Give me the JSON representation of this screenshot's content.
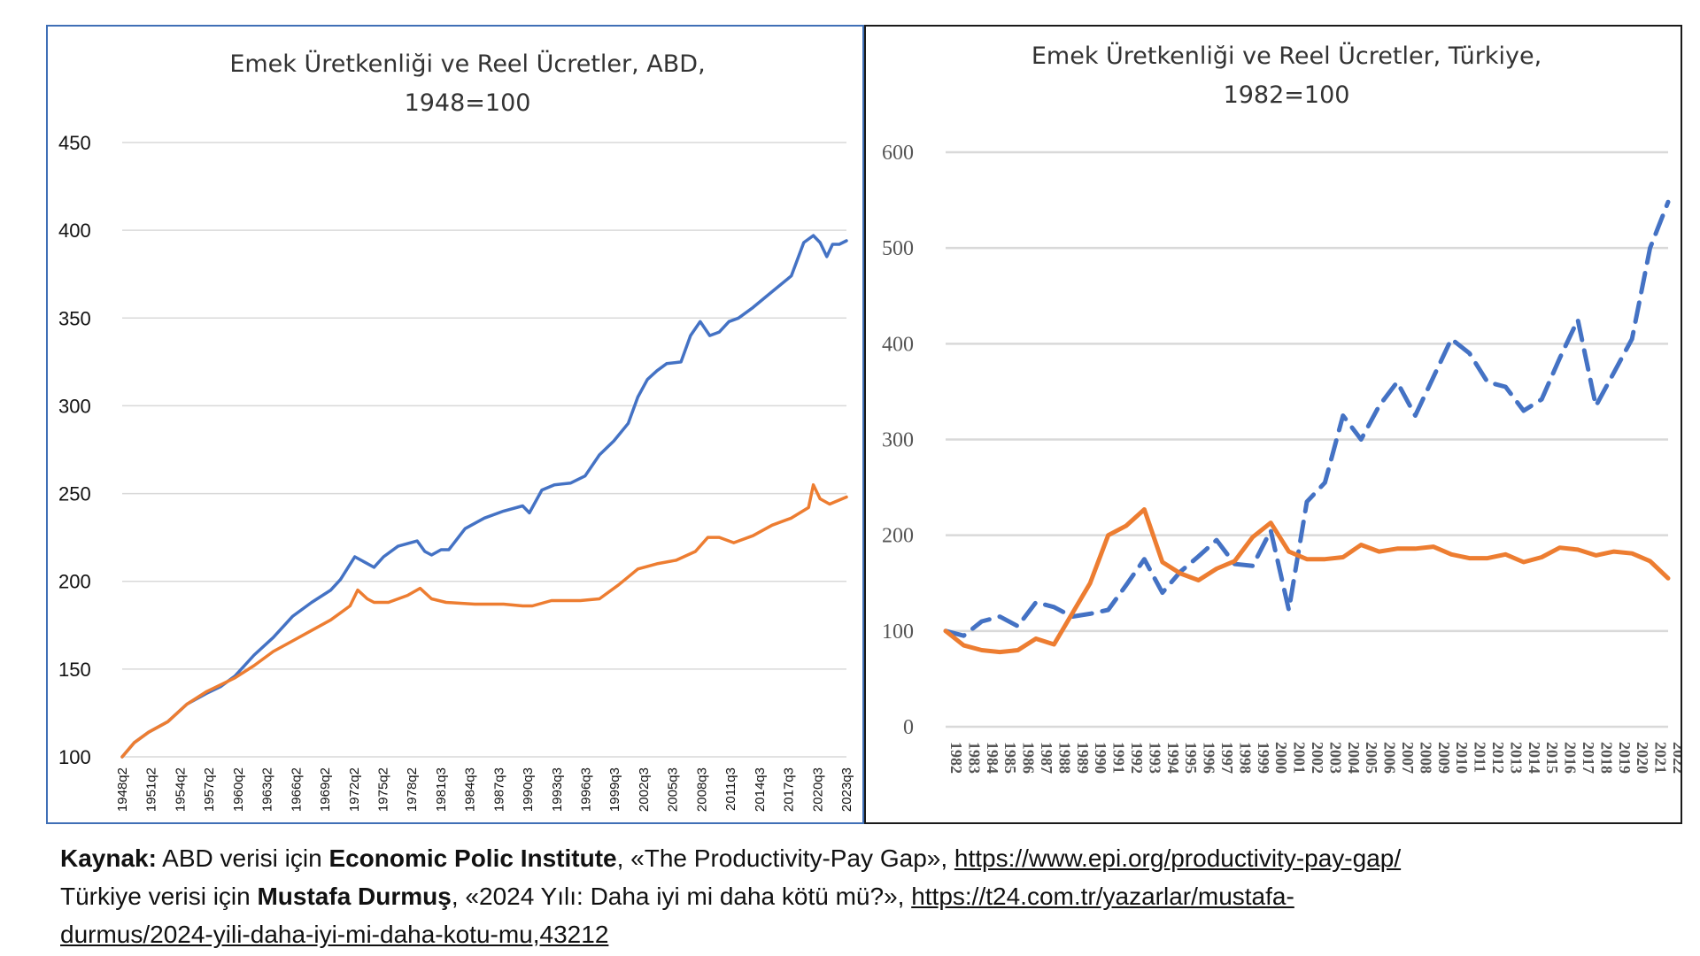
{
  "chart_data": [
    {
      "type": "line",
      "title_line1": "Emek Üretkenliği ve Reel Ücretler, ABD,",
      "title_line2": "1948=100",
      "ylim": [
        100,
        450
      ],
      "yticks": [
        100,
        150,
        200,
        250,
        300,
        350,
        400,
        450
      ],
      "x_tick_labels": [
        "1948q2",
        "1951q2",
        "1954q2",
        "1957q2",
        "1960q2",
        "1963q2",
        "1966q2",
        "1969q2",
        "1972q2",
        "1975q2",
        "1978q2",
        "1981q3",
        "1984q3",
        "1987q3",
        "1990q3",
        "1993q3",
        "1996q3",
        "1999q3",
        "2002q3",
        "2005q3",
        "2008q3",
        "2011q3",
        "2014q3",
        "2017q3",
        "2020q3",
        "2023q3"
      ],
      "x_range": [
        1948.25,
        2023.75
      ],
      "grid": true,
      "series": [
        {
          "color": "#4472c4",
          "style": "solid",
          "x": [
            1948.25,
            1949.5,
            1951,
            1953,
            1955,
            1957,
            1958.5,
            1960,
            1962,
            1964,
            1966,
            1968,
            1970,
            1971,
            1972.5,
            1973.5,
            1974.5,
            1975.5,
            1977,
            1979,
            1979.8,
            1980.5,
            1981.5,
            1982.3,
            1984,
            1986,
            1988,
            1990,
            1990.7,
            1992,
            1993.3,
            1995,
            1996.5,
            1998,
            1999.5,
            2001,
            2002,
            2003,
            2004,
            2005,
            2006.5,
            2007.5,
            2008.5,
            2009.5,
            2010.5,
            2011.5,
            2012.5,
            2014,
            2016,
            2018,
            2019.3,
            2020.3,
            2021,
            2021.7,
            2022.3,
            2023,
            2023.75
          ],
          "values": [
            100,
            108,
            114,
            120,
            130,
            136,
            140,
            146,
            158,
            168,
            180,
            188,
            195,
            201,
            214,
            211,
            208,
            214,
            220,
            223,
            217,
            215,
            218,
            218,
            230,
            236,
            240,
            243,
            239,
            252,
            255,
            256,
            260,
            272,
            280,
            290,
            305,
            315,
            320,
            324,
            325,
            340,
            348,
            340,
            342,
            348,
            350,
            356,
            365,
            374,
            393,
            397,
            393,
            385,
            392,
            392,
            394
          ]
        },
        {
          "color": "#ed7d31",
          "style": "solid",
          "x": [
            1948.25,
            1949.5,
            1951,
            1953,
            1955,
            1957,
            1958.5,
            1960,
            1962,
            1964,
            1966,
            1968,
            1970,
            1972,
            1972.8,
            1973.8,
            1974.5,
            1976,
            1978,
            1979.3,
            1980.5,
            1982,
            1985,
            1988,
            1990,
            1991,
            1993,
            1996,
            1998,
            2000,
            2002,
            2004,
            2006,
            2008,
            2009.3,
            2010.5,
            2012,
            2014,
            2016,
            2018,
            2019.8,
            2020.3,
            2021,
            2022,
            2023.75
          ],
          "values": [
            100,
            108,
            114,
            120,
            130,
            137,
            141,
            145,
            152,
            160,
            166,
            172,
            178,
            186,
            195,
            190,
            188,
            188,
            192,
            196,
            190,
            188,
            187,
            187,
            186,
            186,
            189,
            189,
            190,
            198,
            207,
            210,
            212,
            217,
            225,
            225,
            222,
            226,
            232,
            236,
            242,
            255,
            247,
            244,
            248
          ]
        }
      ]
    },
    {
      "type": "line",
      "title_line1": "Emek Üretkenliği ve Reel Ücretler, Türkiye,",
      "title_line2": "1982=100",
      "ylim": [
        0,
        600
      ],
      "yticks": [
        0,
        100,
        200,
        300,
        400,
        500,
        600
      ],
      "categories": [
        1982,
        1983,
        1984,
        1985,
        1986,
        1987,
        1988,
        1989,
        1990,
        1991,
        1992,
        1993,
        1994,
        1995,
        1996,
        1997,
        1998,
        1999,
        2000,
        2001,
        2002,
        2003,
        2004,
        2005,
        2006,
        2007,
        2008,
        2009,
        2010,
        2011,
        2012,
        2013,
        2014,
        2015,
        2016,
        2017,
        2018,
        2019,
        2020,
        2021,
        2022
      ],
      "grid": true,
      "series": [
        {
          "color": "#4472c4",
          "style": "dashed",
          "values": [
            100,
            95,
            110,
            115,
            105,
            130,
            125,
            115,
            118,
            122,
            148,
            175,
            140,
            162,
            178,
            195,
            170,
            168,
            205,
            122,
            235,
            255,
            325,
            300,
            335,
            360,
            325,
            365,
            405,
            390,
            360,
            355,
            330,
            342,
            385,
            425,
            335,
            370,
            405,
            500,
            548
          ]
        },
        {
          "color": "#ed7d31",
          "style": "solid",
          "values": [
            100,
            85,
            80,
            78,
            80,
            92,
            86,
            118,
            150,
            200,
            210,
            227,
            172,
            160,
            153,
            165,
            173,
            198,
            213,
            183,
            175,
            175,
            177,
            190,
            183,
            186,
            186,
            188,
            180,
            176,
            176,
            180,
            172,
            177,
            187,
            185,
            179,
            183,
            181,
            173,
            155
          ]
        }
      ]
    }
  ],
  "source": {
    "label": "Kaynak:",
    "usa_prefix": " ABD verisi için ",
    "usa_org": "Economic Polic Institute",
    "usa_title": ", «The Productivity-Pay Gap», ",
    "usa_link": "https://www.epi.org/productivity-pay-gap/",
    "tr_prefix": "Türkiye verisi için ",
    "tr_author": "Mustafa Durmuş",
    "tr_title": ", «2024 Yılı: Daha iyi mi daha kötü mü?», ",
    "tr_link_1": "https://t24.com.tr/yazarlar/mustafa-",
    "tr_link_2": "durmus/2024-yili-daha-iyi-mi-daha-kotu-mu,43212"
  }
}
